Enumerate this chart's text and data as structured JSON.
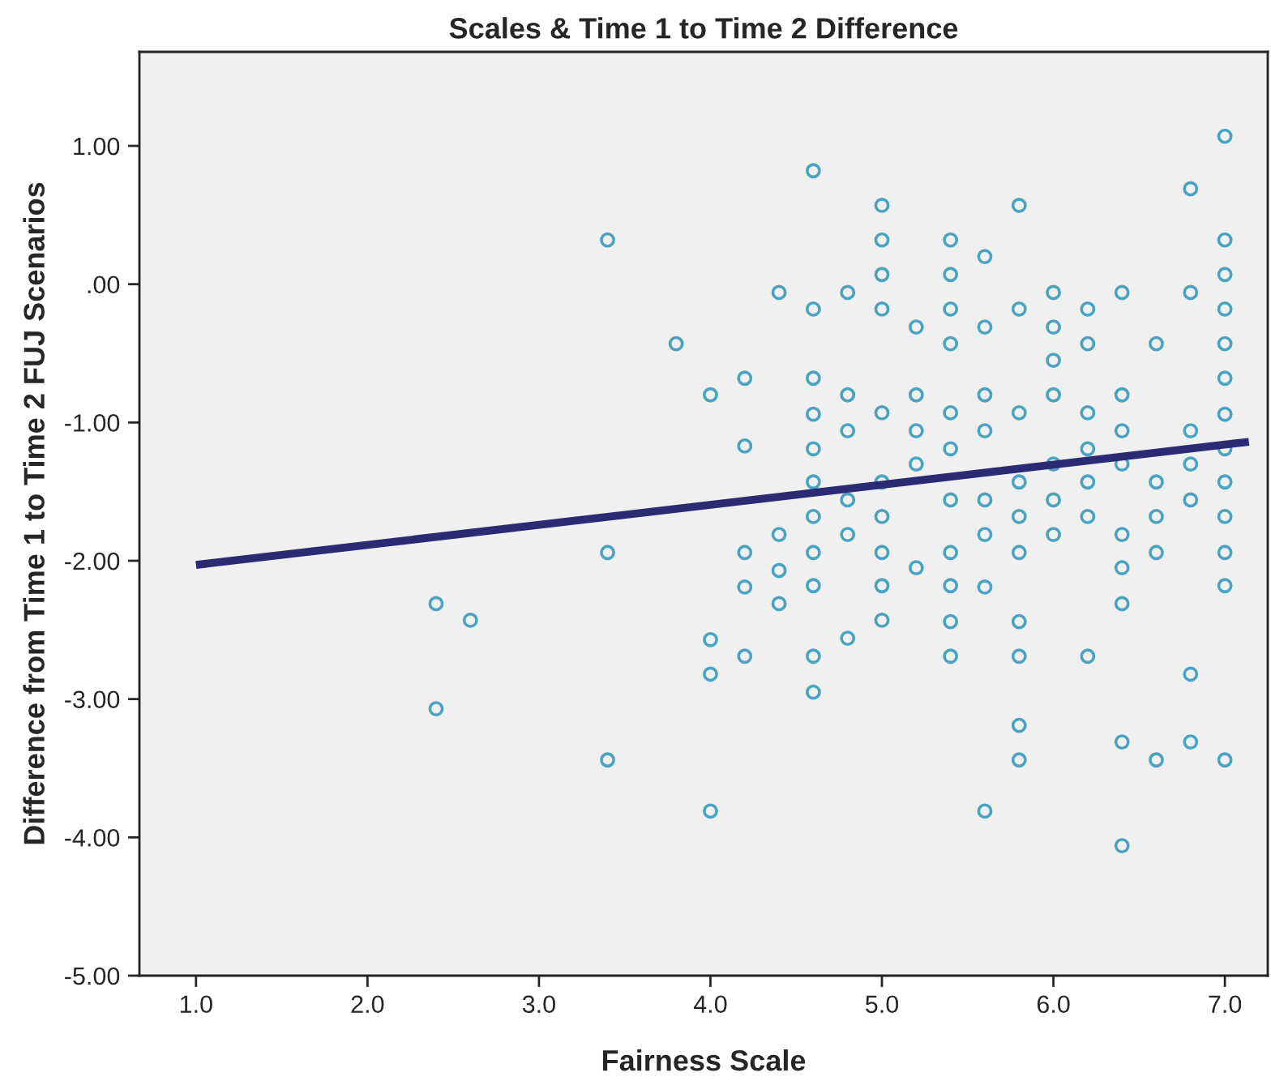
{
  "chart_data": {
    "type": "scatter",
    "title": "Scales & Time 1 to Time 2 Difference",
    "xlabel": "Fairness Scale",
    "ylabel": "Difference from Time 1 to Time 2 FUJ Scenarios",
    "series": [
      {
        "color": "#4aa3c0",
        "marker": "circle",
        "x": [
          2.4,
          2.4,
          2.6,
          3.4,
          3.4,
          3.4,
          3.8,
          4.0,
          4.0,
          4.0,
          4.0,
          4.2,
          4.2,
          4.2,
          4.2,
          4.2,
          4.4,
          4.4,
          4.4,
          4.4,
          4.6,
          4.6,
          4.6,
          4.6,
          4.6,
          4.6,
          4.6,
          4.6,
          4.6,
          4.6,
          4.6,
          4.8,
          4.8,
          4.8,
          4.8,
          4.8,
          4.8,
          5.0,
          5.0,
          5.0,
          5.0,
          5.0,
          5.0,
          5.0,
          5.0,
          5.0,
          5.0,
          5.2,
          5.2,
          5.2,
          5.2,
          5.2,
          5.4,
          5.4,
          5.4,
          5.4,
          5.4,
          5.4,
          5.4,
          5.4,
          5.4,
          5.4,
          5.4,
          5.6,
          5.6,
          5.6,
          5.6,
          5.6,
          5.6,
          5.6,
          5.6,
          5.8,
          5.8,
          5.8,
          5.8,
          5.8,
          5.8,
          5.8,
          5.8,
          5.8,
          5.8,
          6.0,
          6.0,
          6.0,
          6.0,
          6.0,
          6.0,
          6.0,
          6.2,
          6.2,
          6.2,
          6.2,
          6.2,
          6.2,
          6.2,
          6.4,
          6.4,
          6.4,
          6.4,
          6.4,
          6.4,
          6.4,
          6.4,
          6.4,
          6.6,
          6.6,
          6.6,
          6.6,
          6.6,
          6.8,
          6.8,
          6.8,
          6.8,
          6.8,
          6.8,
          6.8,
          7.0,
          7.0,
          7.0,
          7.0,
          7.0,
          7.0,
          7.0,
          7.0,
          7.0,
          7.0,
          7.0,
          7.0,
          7.0
        ],
        "values": [
          -2.31,
          -3.07,
          -2.43,
          0.32,
          -1.94,
          -3.44,
          -0.43,
          -0.8,
          -2.57,
          -2.82,
          -3.81,
          -0.68,
          -1.17,
          -1.94,
          -2.19,
          -2.69,
          -0.06,
          -1.81,
          -2.07,
          -2.31,
          0.82,
          -0.18,
          -0.68,
          -0.94,
          -1.19,
          -1.43,
          -1.68,
          -1.94,
          -2.18,
          -2.69,
          -2.95,
          -0.06,
          -0.8,
          -1.06,
          -1.56,
          -1.81,
          -2.56,
          0.57,
          0.32,
          0.07,
          -0.18,
          -0.93,
          -1.43,
          -1.68,
          -1.94,
          -2.18,
          -2.43,
          -0.31,
          -0.8,
          -1.06,
          -1.3,
          -2.05,
          0.32,
          0.07,
          -0.18,
          -0.43,
          -0.93,
          -1.19,
          -1.56,
          -1.94,
          -2.18,
          -2.44,
          -2.69,
          0.2,
          -0.31,
          -0.8,
          -1.06,
          -1.56,
          -1.81,
          -2.19,
          -3.81,
          0.57,
          -0.18,
          -0.93,
          -1.43,
          -1.68,
          -1.94,
          -2.44,
          -2.69,
          -3.19,
          -3.44,
          -0.06,
          -0.31,
          -0.55,
          -0.8,
          -1.3,
          -1.56,
          -1.81,
          -0.18,
          -0.43,
          -0.93,
          -1.19,
          -1.43,
          -1.68,
          -2.69,
          -0.06,
          -0.8,
          -1.06,
          -1.3,
          -1.81,
          -2.05,
          -2.31,
          -3.31,
          -4.06,
          -0.43,
          -1.43,
          -1.68,
          -1.94,
          -3.44,
          0.69,
          -0.06,
          -1.06,
          -1.3,
          -1.56,
          -2.82,
          -3.31,
          1.07,
          0.32,
          0.07,
          -0.18,
          -0.43,
          -0.68,
          -0.94,
          -1.19,
          -1.43,
          -1.68,
          -1.94,
          -2.18,
          -3.44
        ]
      },
      {
        "type": "line",
        "color": "#2b2a73",
        "x": [
          1.0,
          7.14
        ],
        "values": [
          -2.03,
          -1.14
        ]
      }
    ],
    "xlim": [
      0.67,
      7.25
    ],
    "ylim": [
      -5.0,
      1.68
    ],
    "xticks": [
      {
        "value": 1,
        "label": "1.0"
      },
      {
        "value": 2,
        "label": "2.0"
      },
      {
        "value": 3,
        "label": "3.0"
      },
      {
        "value": 4,
        "label": "4.0"
      },
      {
        "value": 5,
        "label": "5.0"
      },
      {
        "value": 6,
        "label": "6.0"
      },
      {
        "value": 7,
        "label": "7.0"
      }
    ],
    "yticks": [
      {
        "value": -5,
        "label": "-5.00"
      },
      {
        "value": -4,
        "label": "-4.00"
      },
      {
        "value": -3,
        "label": "-3.00"
      },
      {
        "value": -2,
        "label": "-2.00"
      },
      {
        "value": -1,
        "label": "-1.00"
      },
      {
        "value": 0,
        "label": ".00"
      },
      {
        "value": 1,
        "label": "1.00"
      }
    ]
  }
}
